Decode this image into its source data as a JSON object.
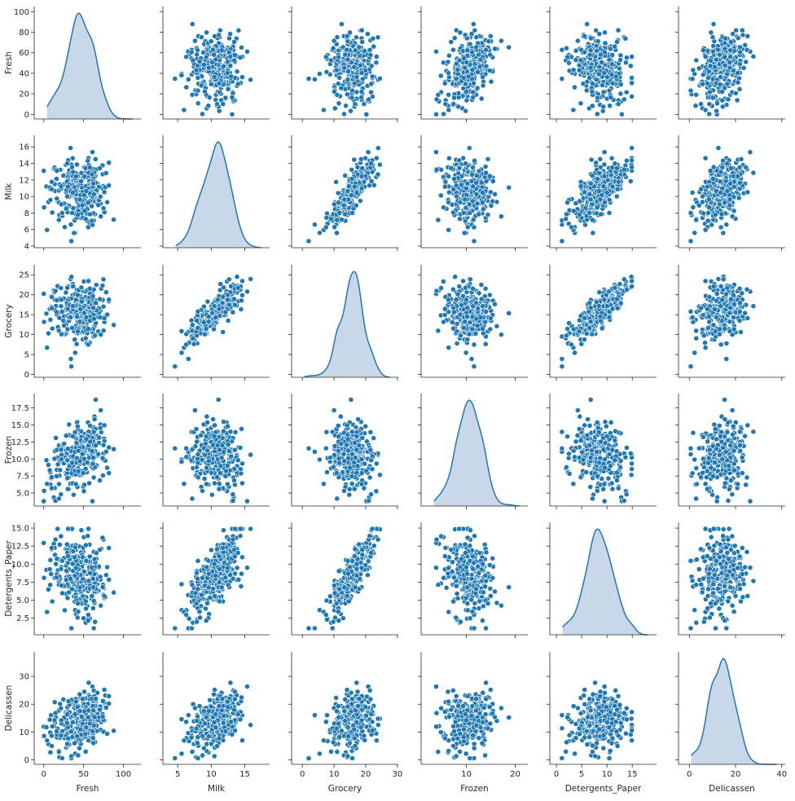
{
  "chart_data": {
    "type": "scatter",
    "subtype": "pairplot",
    "variables": [
      "Fresh",
      "Milk",
      "Grocery",
      "Frozen",
      "Detergents_Paper",
      "Delicassen"
    ],
    "diagonal": "kde",
    "grid": false,
    "colors": {
      "point_fill": "#1f77b4",
      "point_edge": "#ffffff",
      "kde_line": "#1f77b4",
      "kde_fill": "#c6d6e8"
    },
    "x_axes": [
      {
        "label": "Fresh",
        "range": [
          -12,
          122
        ],
        "ticks": [
          "0",
          "50",
          "100"
        ]
      },
      {
        "label": "Milk",
        "range": [
          2.8,
          18.7
        ],
        "ticks": [
          "5",
          "10",
          "15"
        ]
      },
      {
        "label": "Grocery",
        "range": [
          -3.4,
          30.3
        ],
        "ticks": [
          "0",
          "10",
          "20",
          "30"
        ]
      },
      {
        "label": "Frozen",
        "range": [
          0.7,
          22.6
        ],
        "ticks": [
          "10",
          "20"
        ]
      },
      {
        "label": "Detergents_Paper",
        "range": [
          -1.3,
          19.8
        ],
        "ticks": [
          "0",
          "5",
          "10",
          "15"
        ]
      },
      {
        "label": "Delicassen",
        "range": [
          -4.7,
          41.5
        ],
        "ticks": [
          "0",
          "20",
          "40"
        ]
      }
    ],
    "y_axes": [
      {
        "label": "Fresh",
        "range": [
          -4.5,
          105
        ],
        "ticks": [
          "0",
          "20",
          "40",
          "60",
          "80",
          "100"
        ]
      },
      {
        "label": "Milk",
        "range": [
          3.8,
          17.4
        ],
        "ticks": [
          "4",
          "6",
          "8",
          "10",
          "12",
          "14",
          "16"
        ]
      },
      {
        "label": "Grocery",
        "range": [
          -0.7,
          27.5
        ],
        "ticks": [
          "0",
          "5",
          "10",
          "15",
          "20",
          "25"
        ]
      },
      {
        "label": "Frozen",
        "range": [
          3.1,
          19.6
        ],
        "ticks": [
          "5.0",
          "7.5",
          "10.0",
          "12.5",
          "15.0",
          "17.5"
        ]
      },
      {
        "label": "Detergents_Paper",
        "range": [
          0.2,
          15.8
        ],
        "ticks": [
          "2.5",
          "5.0",
          "7.5",
          "10.0",
          "12.5",
          "15.0"
        ]
      },
      {
        "label": "Delicassen",
        "range": [
          -1.6,
          38.8
        ],
        "ticks": [
          "0",
          "10",
          "20",
          "30"
        ]
      }
    ],
    "approx_distributions": {
      "Fresh": {
        "mean": 45,
        "std": 18,
        "min": 0,
        "max": 101
      },
      "Milk": {
        "mean": 10.8,
        "std": 2.0,
        "min": 4.6,
        "max": 16.6
      },
      "Grocery": {
        "mean": 15.8,
        "std": 3.6,
        "min": 1.3,
        "max": 26
      },
      "Frozen": {
        "mean": 10.3,
        "std": 2.6,
        "min": 3.8,
        "max": 18.7
      },
      "Detergents_Paper": {
        "mean": 8.6,
        "std": 2.8,
        "min": 1.1,
        "max": 14.9
      },
      "Delicassen": {
        "mean": 13.8,
        "std": 5.0,
        "min": 0.6,
        "max": 35.8
      }
    },
    "approx_correlations": [
      [
        "Milk",
        "Grocery",
        0.85
      ],
      [
        "Grocery",
        "Detergents_Paper",
        0.85
      ],
      [
        "Milk",
        "Detergents_Paper",
        0.7
      ],
      [
        "Fresh",
        "Frozen",
        0.45
      ],
      [
        "Milk",
        "Delicassen",
        0.4
      ],
      [
        "Fresh",
        "Delicassen",
        0.3
      ],
      [
        "Frozen",
        "Delicassen",
        0.2
      ],
      [
        "Grocery",
        "Delicassen",
        0.2
      ],
      [
        "Fresh",
        "Detergents_Paper",
        -0.2
      ],
      [
        "Frozen",
        "Detergents_Paper",
        -0.2
      ],
      [
        "Fresh",
        "Milk",
        -0.05
      ],
      [
        "Fresh",
        "Grocery",
        -0.05
      ],
      [
        "Milk",
        "Frozen",
        -0.05
      ],
      [
        "Grocery",
        "Frozen",
        -0.1
      ],
      [
        "Detergents_Paper",
        "Delicassen",
        0.1
      ]
    ],
    "n_points": 300
  }
}
